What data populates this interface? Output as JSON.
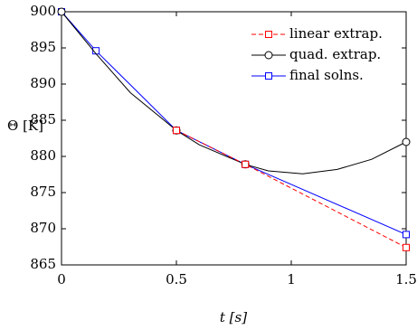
{
  "chart_data": {
    "type": "line",
    "xlabel": "t [s]",
    "ylabel": "Θ [K]",
    "xlim": [
      0,
      1.5
    ],
    "xticks": [
      0,
      0.5,
      1,
      1.5
    ],
    "ylim": [
      865,
      900
    ],
    "yticks": [
      865,
      870,
      875,
      880,
      885,
      890,
      895,
      900
    ],
    "legend": "upper right",
    "series": [
      {
        "name": "linear extrap.",
        "color": "#ff0000",
        "dash": true,
        "marker": "square",
        "x": [
          0.5,
          0.8,
          1.5
        ],
        "values": [
          883.6,
          878.9,
          867.4
        ]
      },
      {
        "name": "quad. extrap.",
        "color": "#000000",
        "dash": false,
        "marker": "circle",
        "x": [
          0,
          0.15,
          0.3,
          0.5,
          0.6,
          0.8,
          0.9,
          1.05,
          1.2,
          1.35,
          1.5
        ],
        "values": [
          900,
          894.2,
          888.8,
          883.6,
          881.6,
          878.9,
          878,
          877.6,
          878.2,
          879.6,
          882
        ],
        "markers": [
          0,
          3,
          5,
          10
        ]
      },
      {
        "name": "final solns.",
        "color": "#0000ff",
        "dash": false,
        "marker": "square",
        "x": [
          0,
          0.15,
          0.5,
          0.8,
          1.5
        ],
        "values": [
          900,
          894.6,
          883.6,
          878.9,
          869.2
        ]
      }
    ]
  }
}
